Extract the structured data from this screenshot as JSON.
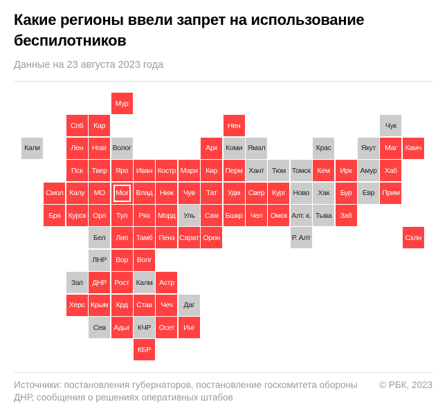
{
  "title": "Какие регионы ввели запрет на использование беспилотников",
  "subtitle": "Данные на 23 августа 2023 года",
  "footer": {
    "sources": "Источники: постановления губернаторов, постановление госкомитета обороны ДНР, сообщения о решениях оперативных штабов",
    "copyright": "© РБК, 2023"
  },
  "colors": {
    "banned": "#ff4141",
    "not_banned": "#cccccc"
  },
  "regions": [
    {
      "label": "Мур",
      "col": 4,
      "row": 0,
      "banned": true
    },
    {
      "label": "Спб",
      "col": 2,
      "row": 1,
      "banned": true
    },
    {
      "label": "Кар",
      "col": 3,
      "row": 1,
      "banned": true
    },
    {
      "label": "Нен",
      "col": 9,
      "row": 1,
      "banned": true
    },
    {
      "label": "Чук",
      "col": 16,
      "row": 1,
      "banned": false
    },
    {
      "label": "Кали",
      "col": 0,
      "row": 2,
      "banned": false
    },
    {
      "label": "Лен",
      "col": 2,
      "row": 2,
      "banned": true
    },
    {
      "label": "Новг",
      "col": 3,
      "row": 2,
      "banned": true
    },
    {
      "label": "Волог",
      "col": 4,
      "row": 2,
      "banned": false
    },
    {
      "label": "Арх",
      "col": 8,
      "row": 2,
      "banned": true
    },
    {
      "label": "Коми",
      "col": 9,
      "row": 2,
      "banned": false
    },
    {
      "label": "Ямал",
      "col": 10,
      "row": 2,
      "banned": false
    },
    {
      "label": "Крас",
      "col": 13,
      "row": 2,
      "banned": false
    },
    {
      "label": "Якут",
      "col": 15,
      "row": 2,
      "banned": false
    },
    {
      "label": "Маг",
      "col": 16,
      "row": 2,
      "banned": true
    },
    {
      "label": "Камч",
      "col": 17,
      "row": 2,
      "banned": true
    },
    {
      "label": "Пск",
      "col": 2,
      "row": 3,
      "banned": true
    },
    {
      "label": "Твер",
      "col": 3,
      "row": 3,
      "banned": true
    },
    {
      "label": "Яро",
      "col": 4,
      "row": 3,
      "banned": true
    },
    {
      "label": "Иван",
      "col": 5,
      "row": 3,
      "banned": true
    },
    {
      "label": "Костр",
      "col": 6,
      "row": 3,
      "banned": true
    },
    {
      "label": "Мари",
      "col": 7,
      "row": 3,
      "banned": true
    },
    {
      "label": "Кир",
      "col": 8,
      "row": 3,
      "banned": true
    },
    {
      "label": "Перм",
      "col": 9,
      "row": 3,
      "banned": true
    },
    {
      "label": "Хант",
      "col": 10,
      "row": 3,
      "banned": false
    },
    {
      "label": "Тюм",
      "col": 11,
      "row": 3,
      "banned": false
    },
    {
      "label": "Томск",
      "col": 12,
      "row": 3,
      "banned": false
    },
    {
      "label": "Кем",
      "col": 13,
      "row": 3,
      "banned": true
    },
    {
      "label": "Ирк",
      "col": 14,
      "row": 3,
      "banned": true
    },
    {
      "label": "Амур",
      "col": 15,
      "row": 3,
      "banned": false
    },
    {
      "label": "Хаб",
      "col": 16,
      "row": 3,
      "banned": true
    },
    {
      "label": "Смол",
      "col": 1,
      "row": 4,
      "banned": true
    },
    {
      "label": "Калу",
      "col": 2,
      "row": 4,
      "banned": true
    },
    {
      "label": "МО",
      "col": 3,
      "row": 4,
      "banned": true
    },
    {
      "label": "Мск",
      "col": 4,
      "row": 4,
      "banned": true,
      "capital": true
    },
    {
      "label": "Влад",
      "col": 5,
      "row": 4,
      "banned": true
    },
    {
      "label": "Ниж",
      "col": 6,
      "row": 4,
      "banned": true
    },
    {
      "label": "Чув",
      "col": 7,
      "row": 4,
      "banned": true
    },
    {
      "label": "Тат",
      "col": 8,
      "row": 4,
      "banned": true
    },
    {
      "label": "Удм",
      "col": 9,
      "row": 4,
      "banned": true
    },
    {
      "label": "Свер",
      "col": 10,
      "row": 4,
      "banned": true
    },
    {
      "label": "Кург",
      "col": 11,
      "row": 4,
      "banned": true
    },
    {
      "label": "Ново",
      "col": 12,
      "row": 4,
      "banned": false
    },
    {
      "label": "Хак",
      "col": 13,
      "row": 4,
      "banned": false
    },
    {
      "label": "Бур",
      "col": 14,
      "row": 4,
      "banned": true
    },
    {
      "label": "Евр",
      "col": 15,
      "row": 4,
      "banned": false
    },
    {
      "label": "Прим",
      "col": 16,
      "row": 4,
      "banned": true
    },
    {
      "label": "Бря",
      "col": 1,
      "row": 5,
      "banned": true
    },
    {
      "label": "Курск",
      "col": 2,
      "row": 5,
      "banned": true
    },
    {
      "label": "Орл",
      "col": 3,
      "row": 5,
      "banned": true
    },
    {
      "label": "Тул",
      "col": 4,
      "row": 5,
      "banned": true
    },
    {
      "label": "Ряз",
      "col": 5,
      "row": 5,
      "banned": true
    },
    {
      "label": "Морд",
      "col": 6,
      "row": 5,
      "banned": true
    },
    {
      "label": "Уль",
      "col": 7,
      "row": 5,
      "banned": false
    },
    {
      "label": "Сам",
      "col": 8,
      "row": 5,
      "banned": true
    },
    {
      "label": "Бшкр",
      "col": 9,
      "row": 5,
      "banned": true
    },
    {
      "label": "Чел",
      "col": 10,
      "row": 5,
      "banned": true
    },
    {
      "label": "Омск",
      "col": 11,
      "row": 5,
      "banned": true
    },
    {
      "label": "Алт. к.",
      "col": 12,
      "row": 5,
      "banned": false
    },
    {
      "label": "Тыва",
      "col": 13,
      "row": 5,
      "banned": false
    },
    {
      "label": "Заб",
      "col": 14,
      "row": 5,
      "banned": true
    },
    {
      "label": "Бел",
      "col": 3,
      "row": 6,
      "banned": false
    },
    {
      "label": "Лип",
      "col": 4,
      "row": 6,
      "banned": true
    },
    {
      "label": "Тамб",
      "col": 5,
      "row": 6,
      "banned": true
    },
    {
      "label": "Пенз",
      "col": 6,
      "row": 6,
      "banned": true
    },
    {
      "label": "Сарат",
      "col": 7,
      "row": 6,
      "banned": true
    },
    {
      "label": "Орен",
      "col": 8,
      "row": 6,
      "banned": true
    },
    {
      "label": "Р. Алт",
      "col": 12,
      "row": 6,
      "banned": false
    },
    {
      "label": "Схлн",
      "col": 17,
      "row": 6,
      "banned": true
    },
    {
      "label": "ЛНР",
      "col": 3,
      "row": 7,
      "banned": false
    },
    {
      "label": "Вор",
      "col": 4,
      "row": 7,
      "banned": true
    },
    {
      "label": "Волг",
      "col": 5,
      "row": 7,
      "banned": true
    },
    {
      "label": "Зап",
      "col": 2,
      "row": 8,
      "banned": false
    },
    {
      "label": "ДНР",
      "col": 3,
      "row": 8,
      "banned": true
    },
    {
      "label": "Рост",
      "col": 4,
      "row": 8,
      "banned": true
    },
    {
      "label": "Калм",
      "col": 5,
      "row": 8,
      "banned": false
    },
    {
      "label": "Астр",
      "col": 6,
      "row": 8,
      "banned": true
    },
    {
      "label": "Херс",
      "col": 2,
      "row": 9,
      "banned": true
    },
    {
      "label": "Крым",
      "col": 3,
      "row": 9,
      "banned": true
    },
    {
      "label": "Крд",
      "col": 4,
      "row": 9,
      "banned": true
    },
    {
      "label": "Став",
      "col": 5,
      "row": 9,
      "banned": true
    },
    {
      "label": "Чеч",
      "col": 6,
      "row": 9,
      "banned": true
    },
    {
      "label": "Даг",
      "col": 7,
      "row": 9,
      "banned": false
    },
    {
      "label": "Сев",
      "col": 3,
      "row": 10,
      "banned": false
    },
    {
      "label": "Адыг",
      "col": 4,
      "row": 10,
      "banned": true
    },
    {
      "label": "КЧР",
      "col": 5,
      "row": 10,
      "banned": false
    },
    {
      "label": "Осет",
      "col": 6,
      "row": 10,
      "banned": true
    },
    {
      "label": "Инг",
      "col": 7,
      "row": 10,
      "banned": true
    },
    {
      "label": "КБР",
      "col": 5,
      "row": 11,
      "banned": true
    }
  ]
}
